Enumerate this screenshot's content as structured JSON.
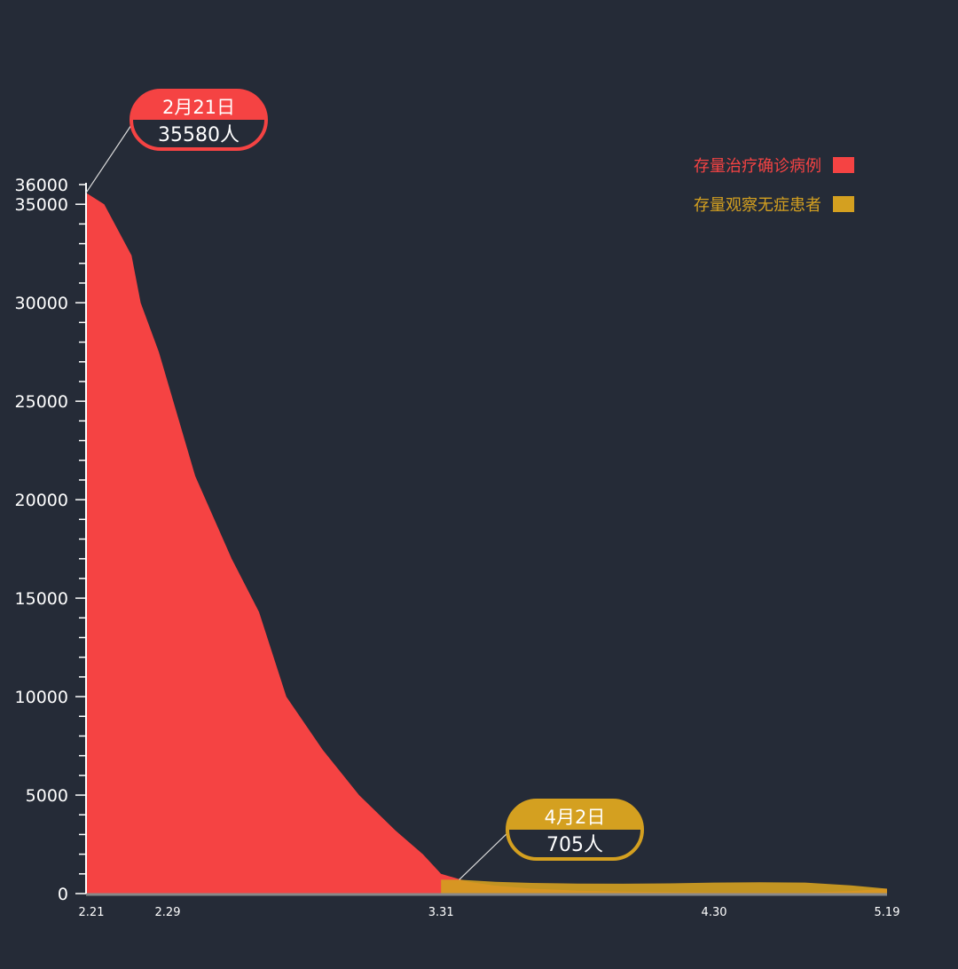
{
  "chart_data": {
    "type": "area",
    "title": "",
    "xlabel": "",
    "ylabel": "",
    "ylim": [
      0,
      36000
    ],
    "yticks": [
      0,
      5000,
      10000,
      15000,
      20000,
      25000,
      30000,
      35000,
      36000
    ],
    "xticks": [
      "2.21",
      "2.29",
      "3.31",
      "4.30",
      "5.19"
    ],
    "grid": false,
    "legend_position": "top-right",
    "series": [
      {
        "name": "存量治疗确诊病例",
        "color": "#f54343",
        "x": [
          "2.21",
          "2.23",
          "2.26",
          "2.27",
          "2.29",
          "3.4",
          "3.8",
          "3.11",
          "3.14",
          "3.18",
          "3.22",
          "3.26",
          "3.29",
          "3.31",
          "4.3",
          "4.6",
          "4.10",
          "4.15",
          "4.20",
          "4.30",
          "5.10",
          "5.15",
          "5.19"
        ],
        "values": [
          35580,
          35000,
          32400,
          30000,
          27500,
          21200,
          17000,
          14300,
          10000,
          7300,
          5000,
          3200,
          2000,
          1000,
          600,
          400,
          250,
          150,
          100,
          60,
          50,
          120,
          250
        ]
      },
      {
        "name": "存量观察无症患者",
        "color": "#d4a020",
        "x": [
          "3.31",
          "4.2",
          "4.6",
          "4.10",
          "4.15",
          "4.20",
          "4.25",
          "4.30",
          "5.5",
          "5.10",
          "5.15",
          "5.19"
        ],
        "values": [
          705,
          705,
          600,
          540,
          510,
          500,
          520,
          560,
          570,
          560,
          420,
          250
        ]
      }
    ],
    "annotations": [
      {
        "date_label": "2月21日",
        "value_label": "35580人",
        "series": 0,
        "x": "2.21",
        "color": "#f54343"
      },
      {
        "date_label": "4月2日",
        "value_label": "705人",
        "series": 1,
        "x": "4.2",
        "color": "#d4a020"
      }
    ]
  }
}
